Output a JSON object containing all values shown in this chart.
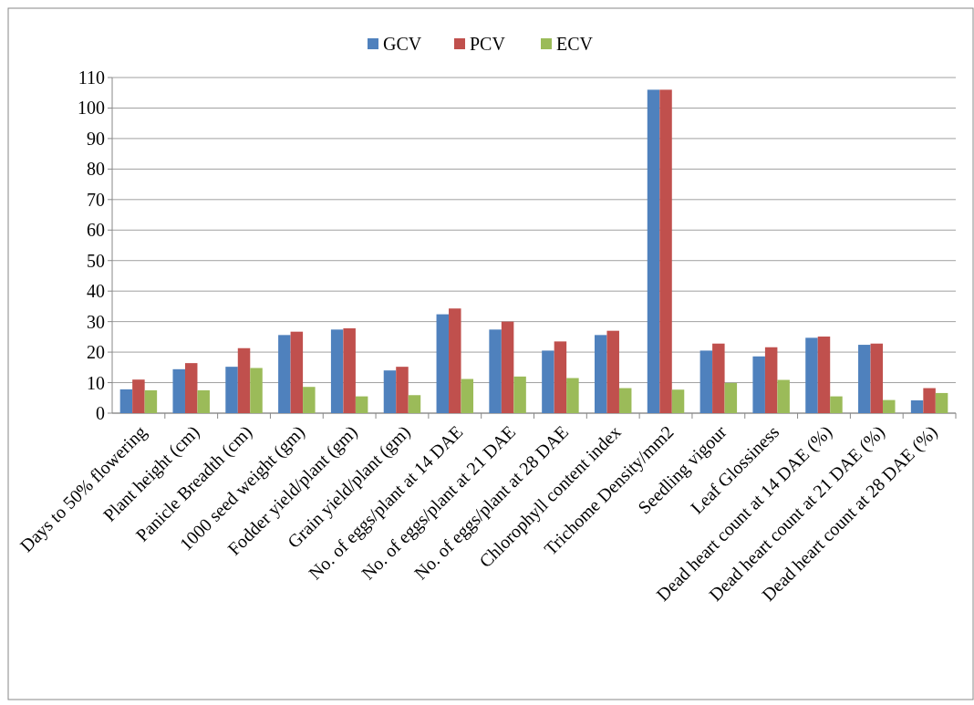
{
  "chart_data": {
    "type": "bar",
    "categories": [
      "Days to 50% flowering",
      "Plant height (cm)",
      "Panicle Breadth (cm)",
      "1000 seed weight (gm)",
      "Fodder yield/plant (gm)",
      "Grain yield/plant (gm)",
      "No. of eggs/plant at 14 DAE",
      "No. of eggs/plant at 21 DAE",
      "No. of eggs/plant at 28 DAE",
      "Chlorophyll content  index",
      "Trichome Density/mm2",
      "Seedling vigour",
      "Leaf Glossiness",
      "Dead heart count at 14 DAE (%)",
      "Dead heart count at 21 DAE (%)",
      "Dead heart count at 28 DAE (%)"
    ],
    "series": [
      {
        "name": "GCV",
        "color": "#4f81bd",
        "values": [
          7.8,
          14.4,
          15.2,
          25.6,
          27.4,
          14,
          32.4,
          27.4,
          20.5,
          25.6,
          106,
          20.5,
          18.6,
          24.7,
          22.4,
          4.2
        ]
      },
      {
        "name": "PCV",
        "color": "#c0504d",
        "values": [
          11,
          16.4,
          21.3,
          26.7,
          27.8,
          15.2,
          34.3,
          30,
          23.5,
          27,
          106,
          22.8,
          21.6,
          25.1,
          22.8,
          8.2
        ]
      },
      {
        "name": "ECV",
        "color": "#9bbb59",
        "values": [
          7.5,
          7.5,
          14.8,
          8.6,
          5.5,
          5.9,
          11.2,
          12,
          11.5,
          8.2,
          7.7,
          9.9,
          10.9,
          5.5,
          4.3,
          6.6
        ]
      }
    ],
    "ylim": [
      0,
      110
    ],
    "yticks": [
      0,
      10,
      20,
      30,
      40,
      50,
      60,
      70,
      80,
      90,
      100,
      110
    ],
    "grid": "y",
    "legend": "top"
  }
}
